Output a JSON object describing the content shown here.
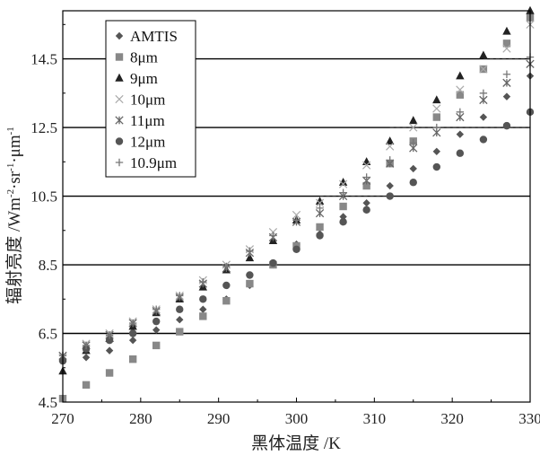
{
  "chart_data": {
    "type": "scatter",
    "title": "",
    "xlabel": "黑体温度 /K",
    "ylabel_parts": {
      "main": "辐射亮度 /Wm",
      "exp1": "-2",
      "mid1": "·sr",
      "exp2": "-1",
      "mid2": "·μm",
      "exp3": "-1"
    },
    "xlim": [
      270,
      330
    ],
    "ylim": [
      4.5,
      15.9
    ],
    "xticks": [
      "270",
      "280",
      "290",
      "300",
      "310",
      "320",
      "330"
    ],
    "yticks": [
      "4.5",
      "6.5",
      "8.5",
      "10.5",
      "12.5",
      "14.5"
    ],
    "ytick_values": [
      4.5,
      6.5,
      8.5,
      10.5,
      12.5,
      14.5
    ],
    "hlines": [
      6.5,
      8.5,
      10.5,
      12.5,
      14.5
    ],
    "grid": false,
    "legend_placement": "top-left",
    "colors": {
      "dark": "#555555",
      "medium": "#888888",
      "light": "#aaaaaa",
      "line": "#000000"
    },
    "series": [
      {
        "name": "AMTIS",
        "marker": "diamond",
        "color": "#555555",
        "x": [
          270,
          273,
          276,
          279,
          282,
          285,
          288,
          291,
          294,
          297,
          300,
          303,
          306,
          309,
          312,
          315,
          318,
          321,
          324,
          327,
          330
        ],
        "y": [
          5.7,
          5.8,
          6.0,
          6.3,
          6.6,
          6.9,
          7.2,
          7.5,
          7.9,
          8.5,
          9.1,
          9.4,
          9.9,
          10.3,
          10.8,
          11.3,
          11.8,
          12.3,
          12.8,
          13.4,
          14.0
        ]
      },
      {
        "name": "8μm",
        "marker": "square",
        "color": "#888888",
        "x": [
          270,
          273,
          276,
          279,
          282,
          285,
          288,
          291,
          294,
          297,
          300,
          303,
          306,
          309,
          312,
          315,
          318,
          321,
          324,
          327,
          330
        ],
        "y": [
          4.6,
          5.0,
          5.35,
          5.75,
          6.15,
          6.55,
          7.0,
          7.45,
          7.95,
          8.5,
          9.05,
          9.6,
          10.2,
          10.8,
          11.45,
          12.1,
          12.8,
          13.45,
          14.2,
          14.95,
          15.7
        ]
      },
      {
        "name": "9μm",
        "marker": "triangle",
        "color": "#222222",
        "x": [
          270,
          273,
          276,
          279,
          282,
          285,
          288,
          291,
          294,
          297,
          300,
          303,
          306,
          309,
          312,
          315,
          318,
          321,
          324,
          327,
          330
        ],
        "y": [
          5.4,
          6.0,
          6.35,
          6.7,
          7.1,
          7.5,
          7.85,
          8.35,
          8.7,
          9.2,
          9.8,
          10.35,
          10.9,
          11.5,
          12.1,
          12.7,
          13.3,
          14.0,
          14.6,
          15.3,
          15.9
        ]
      },
      {
        "name": "10μm",
        "marker": "x",
        "color": "#aaaaaa",
        "x": [
          270,
          273,
          276,
          279,
          282,
          285,
          288,
          291,
          294,
          297,
          300,
          303,
          306,
          309,
          312,
          315,
          318,
          321,
          324,
          327,
          330
        ],
        "y": [
          5.8,
          6.2,
          6.5,
          6.85,
          7.2,
          7.6,
          8.05,
          8.5,
          8.95,
          9.45,
          9.95,
          10.3,
          10.85,
          11.4,
          11.95,
          12.5,
          13.05,
          13.6,
          14.2,
          14.8,
          15.5
        ]
      },
      {
        "name": "11μm",
        "marker": "asterisk",
        "color": "#666666",
        "x": [
          270,
          273,
          276,
          279,
          282,
          285,
          288,
          291,
          294,
          297,
          300,
          303,
          306,
          309,
          312,
          315,
          318,
          321,
          324,
          327,
          330
        ],
        "y": [
          5.85,
          6.15,
          6.45,
          6.8,
          7.15,
          7.55,
          7.95,
          8.4,
          8.85,
          9.3,
          9.75,
          10.0,
          10.5,
          10.95,
          11.45,
          11.9,
          12.35,
          12.8,
          13.3,
          13.8,
          14.35
        ]
      },
      {
        "name": "12μm",
        "marker": "circle",
        "color": "#555555",
        "x": [
          270,
          273,
          276,
          279,
          282,
          285,
          288,
          291,
          294,
          297,
          300,
          303,
          306,
          309,
          312,
          315,
          318,
          321,
          324,
          327,
          330
        ],
        "y": [
          5.7,
          6.05,
          6.3,
          6.5,
          6.85,
          7.2,
          7.5,
          7.9,
          8.2,
          8.55,
          8.95,
          9.35,
          9.75,
          10.1,
          10.5,
          10.9,
          11.35,
          11.75,
          12.15,
          12.55,
          12.95
        ]
      },
      {
        "name": "10.9μm",
        "marker": "plus",
        "color": "#777777",
        "x": [
          270,
          273,
          276,
          279,
          282,
          285,
          288,
          291,
          294,
          297,
          300,
          303,
          306,
          309,
          312,
          315,
          318,
          321,
          324,
          327,
          330
        ],
        "y": [
          5.85,
          6.15,
          6.45,
          6.8,
          7.2,
          7.6,
          8.0,
          8.45,
          8.9,
          9.35,
          9.8,
          10.15,
          10.6,
          11.05,
          11.55,
          12.05,
          12.5,
          12.95,
          13.5,
          14.05,
          14.55
        ]
      }
    ],
    "dashed_extensions": [
      {
        "y": 10.5,
        "x_from": 303,
        "x_to": 312
      },
      {
        "y": 12.5,
        "x_from": 312,
        "x_to": 330
      },
      {
        "y": 14.5,
        "x_from": 324,
        "x_to": 330
      }
    ]
  }
}
